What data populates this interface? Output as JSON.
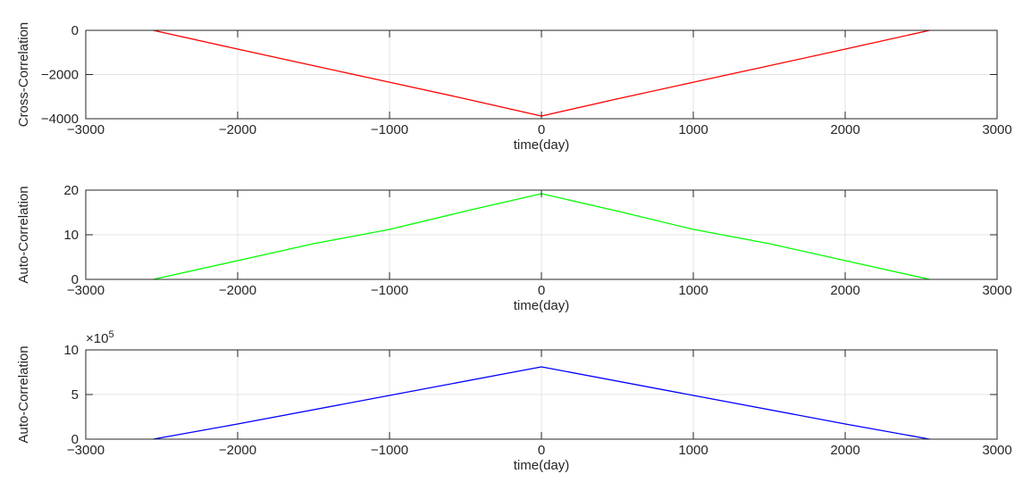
{
  "chart_data": [
    {
      "type": "line",
      "xlabel": "time(day)",
      "ylabel": "Cross-Correlation",
      "xlim": [
        -3000,
        3000
      ],
      "ylim": [
        -4000,
        0
      ],
      "xticks": [
        -3000,
        -2000,
        -1000,
        0,
        1000,
        2000,
        3000
      ],
      "yticks": [
        -4000,
        -2000,
        0
      ],
      "grid": true,
      "series": [
        {
          "color": "#ff0000",
          "x": [
            -2556,
            -2000,
            -1500,
            -1000,
            -500,
            0,
            500,
            1000,
            1500,
            2000,
            2556
          ],
          "y": [
            0,
            -850,
            -1600,
            -2350,
            -3100,
            -3880,
            -3100,
            -2350,
            -1600,
            -850,
            0
          ]
        }
      ]
    },
    {
      "type": "line",
      "xlabel": "time(day)",
      "ylabel": "Auto-Correlation",
      "xlim": [
        -3000,
        3000
      ],
      "ylim": [
        0,
        20
      ],
      "xticks": [
        -3000,
        -2000,
        -1000,
        0,
        1000,
        2000,
        3000
      ],
      "yticks": [
        0,
        10,
        20
      ],
      "grid": true,
      "series": [
        {
          "color": "#00ff00",
          "x": [
            -2556,
            -2000,
            -1500,
            -1000,
            -500,
            0,
            500,
            1000,
            1500,
            2000,
            2556
          ],
          "y": [
            0,
            4.2,
            8.0,
            11.2,
            15.3,
            19.2,
            15.3,
            11.2,
            8.0,
            4.2,
            0
          ]
        }
      ]
    },
    {
      "type": "line",
      "xlabel": "time(day)",
      "ylabel": "Auto-Correlation",
      "multiplier": "×10",
      "multiplier_exp": "5",
      "xlim": [
        -3000,
        3000
      ],
      "ylim": [
        0,
        10
      ],
      "xticks": [
        -3000,
        -2000,
        -1000,
        0,
        1000,
        2000,
        3000
      ],
      "yticks": [
        0,
        5,
        10
      ],
      "grid": true,
      "series": [
        {
          "color": "#0000ff",
          "x": [
            -2556,
            -2000,
            -1000,
            0,
            1000,
            2000,
            2556
          ],
          "y": [
            0,
            1.7,
            4.9,
            8.1,
            4.9,
            1.7,
            0
          ]
        }
      ]
    }
  ]
}
